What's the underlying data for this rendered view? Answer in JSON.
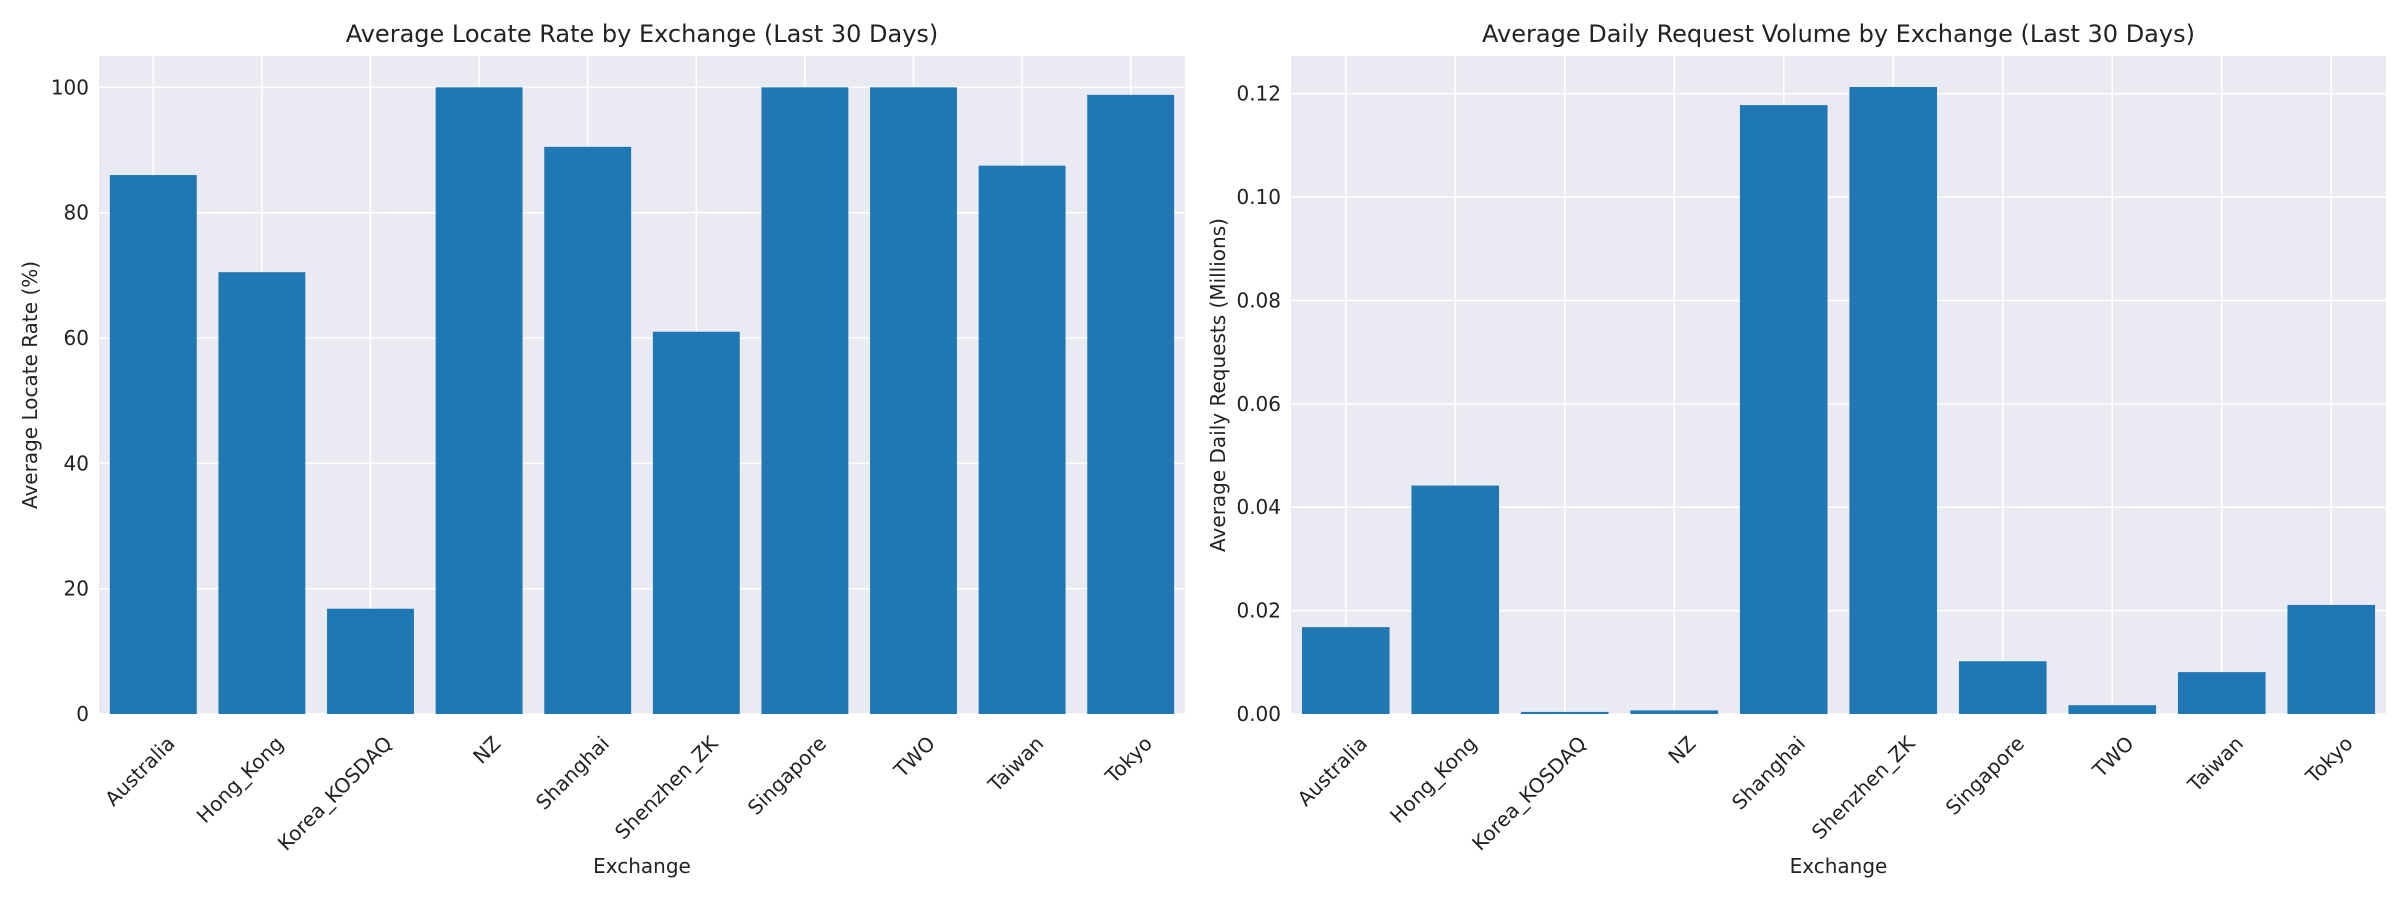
{
  "chart_data": [
    {
      "type": "bar",
      "title": "Average Locate Rate by Exchange (Last 30 Days)",
      "xlabel": "Exchange",
      "ylabel": "Average Locate Rate (%)",
      "categories": [
        "Australia",
        "Hong_Kong",
        "Korea_KOSDAQ",
        "NZ",
        "Shanghai",
        "Shenzhen_ZK",
        "Singapore",
        "TWO",
        "Taiwan",
        "Tokyo"
      ],
      "values": [
        86.0,
        70.5,
        16.8,
        100.0,
        90.5,
        61.0,
        100.0,
        100.0,
        87.5,
        98.8
      ],
      "ylim": [
        0,
        105
      ],
      "yticks": [
        0,
        20,
        40,
        60,
        80,
        100
      ],
      "ytick_labels": [
        "0",
        "20",
        "40",
        "60",
        "80",
        "100"
      ],
      "grid": true,
      "bar_color": "#1f77b4",
      "plot_background": "#eaeaf2"
    },
    {
      "type": "bar",
      "title": "Average Daily Request Volume by Exchange (Last 30 Days)",
      "xlabel": "Exchange",
      "ylabel": "Average Daily Requests (Millions)",
      "categories": [
        "Australia",
        "Hong_Kong",
        "Korea_KOSDAQ",
        "NZ",
        "Shanghai",
        "Shenzhen_ZK",
        "Singapore",
        "TWO",
        "Taiwan",
        "Tokyo"
      ],
      "values": [
        0.0168,
        0.0442,
        0.0004,
        0.0007,
        0.1178,
        0.1213,
        0.0102,
        0.0017,
        0.0081,
        0.0211
      ],
      "ylim": [
        0,
        0.1273
      ],
      "yticks": [
        0,
        0.02,
        0.04,
        0.06,
        0.08,
        0.1,
        0.12
      ],
      "ytick_labels": [
        "0.00",
        "0.02",
        "0.04",
        "0.06",
        "0.08",
        "0.10",
        "0.12"
      ],
      "grid": true,
      "bar_color": "#1f77b4",
      "plot_background": "#eaeaf2"
    }
  ]
}
